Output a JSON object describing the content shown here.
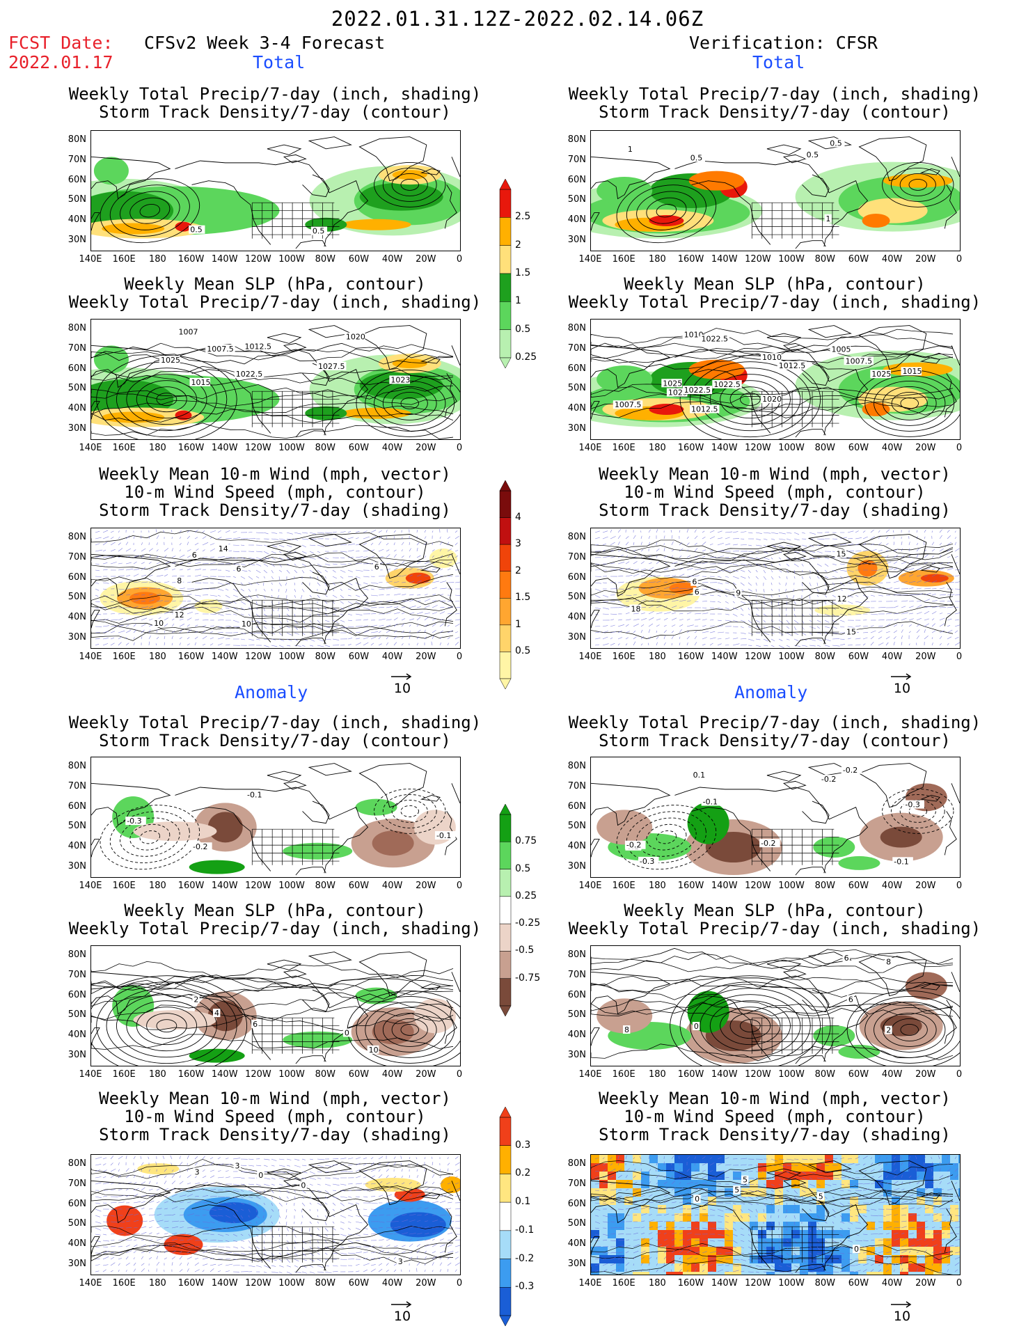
{
  "header": {
    "period": "2022.01.31.12Z-2022.02.14.06Z",
    "fcst_label": "FCST Date:",
    "fcst_date": "2022.01.17",
    "left_heading": "CFSv2 Week 3-4 Forecast",
    "right_heading": "Verification: CFSR",
    "total_label": "Total",
    "anomaly_label": "Anomaly"
  },
  "panel_titles": {
    "precip_track": [
      "Weekly Total Precip/7-day (inch, shading)",
      "Storm Track Density/7-day (contour)"
    ],
    "slp_precip": [
      "Weekly Mean SLP (hPa, contour)",
      "Weekly Total Precip/7-day (inch, shading)"
    ],
    "wind_track": [
      "Weekly Mean 10-m Wind (mph, vector)",
      "10-m Wind Speed (mph, contour)",
      "Storm Track Density/7-day (shading)"
    ]
  },
  "axes": {
    "lat_labels": [
      "80N",
      "70N",
      "60N",
      "50N",
      "40N",
      "30N"
    ],
    "lon_labels": [
      "140E",
      "160E",
      "180",
      "160W",
      "140W",
      "120W",
      "100W",
      "80W",
      "60W",
      "40W",
      "20W",
      "0"
    ]
  },
  "colorbars": {
    "precip_total": {
      "labels": [
        "2.5",
        "2",
        "1.5",
        "1",
        "0.5",
        "0.25"
      ],
      "colors": [
        "#fff5a6",
        "#aaf0a0",
        "#5ad65a",
        "#1ea01e",
        "#ffe07a",
        "#ffb000",
        "#ff7a00",
        "#e8180c"
      ]
    },
    "track_total": {
      "labels": [
        "4",
        "3",
        "2",
        "1.5",
        "1",
        "0.5"
      ],
      "colors": [
        "#ffffff",
        "#fff5a6",
        "#ffd46a",
        "#ffa630",
        "#ff7a10",
        "#f0440a",
        "#c01010",
        "#7a0c0c"
      ]
    },
    "precip_anom": {
      "labels": [
        "0.75",
        "0.5",
        "0.25",
        "-0.25",
        "-0.5",
        "-0.75"
      ],
      "colors": [
        "#7a4a3a",
        "#a06a58",
        "#c8a090",
        "#ecd4c8",
        "#ffffff",
        "#b8f0b0",
        "#5cd65c",
        "#14a014"
      ]
    },
    "track_anom": {
      "labels": [
        "0.3",
        "0.2",
        "0.1",
        "-0.1",
        "-0.2",
        "-0.3"
      ],
      "colors": [
        "#1a5ed6",
        "#3c9cf0",
        "#a6dcf8",
        "#ffffff",
        "#ffe680",
        "#ffb000",
        "#f0401a"
      ]
    }
  },
  "vector_reference": "10",
  "contour_labels": {
    "L1": [
      "0.5",
      "0.5"
    ],
    "R1": [
      "0.5",
      "0.5",
      "1",
      "1",
      "0.5"
    ],
    "L2": [
      "1015",
      "1012.5",
      "1020",
      "1022.5",
      "1027.5",
      "1025",
      "1007.5",
      "1007",
      "1023"
    ],
    "R2": [
      "1012.5",
      "1010",
      "1007.5",
      "1005",
      "1025",
      "1012.5",
      "1010",
      "1015",
      "1022.5",
      "1020",
      "1022.5",
      "1025",
      "1007.5",
      "1025",
      "1022.5"
    ],
    "L3": [
      "6",
      "8",
      "6",
      "10",
      "12",
      "14",
      "10",
      "6"
    ],
    "R3": [
      "6",
      "6",
      "9",
      "12",
      "15",
      "15",
      "18"
    ],
    "L4": [
      "-0.2",
      "-0.1",
      "-0.3",
      "-0.1"
    ],
    "R4": [
      "0.1",
      "0.1",
      "-0.2",
      "-0.2",
      "-0.1",
      "-0.1",
      "-0.3",
      "-0.3",
      "-0.2",
      "-0.2"
    ],
    "L5": [
      "2",
      "10",
      "0",
      "6",
      "4"
    ],
    "R5": [
      "0",
      "8",
      "6",
      "6",
      "2",
      "8"
    ],
    "L6": [
      "3",
      "0",
      "3",
      "0",
      "3"
    ],
    "R6": [
      "0",
      "5",
      "5",
      "0",
      "5"
    ]
  }
}
